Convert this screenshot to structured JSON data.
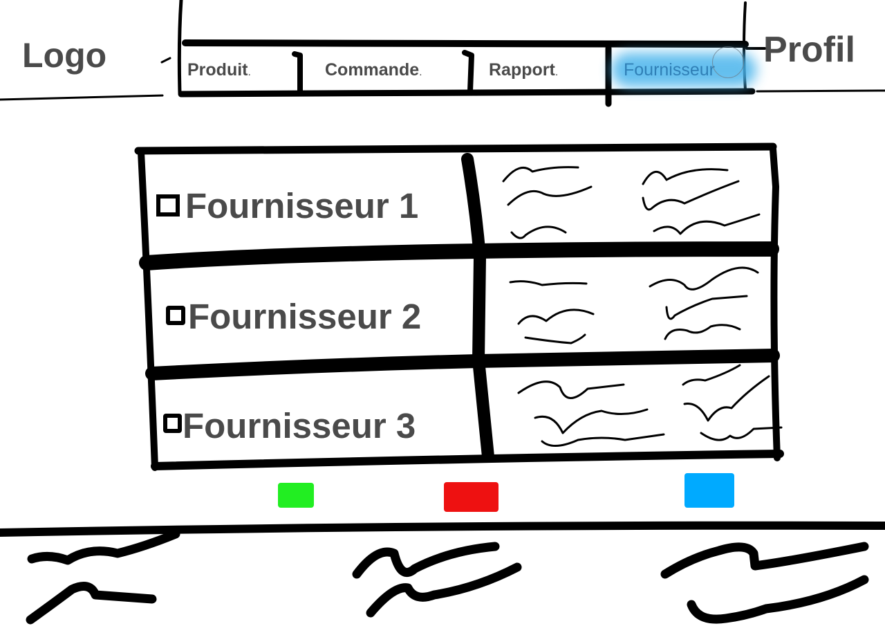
{
  "header": {
    "logo": "Logo",
    "profile": "Profil"
  },
  "nav": {
    "tabs": [
      {
        "label": "Produit",
        "selected": false
      },
      {
        "label": "Commande",
        "selected": false
      },
      {
        "label": "Rapport",
        "selected": false
      },
      {
        "label": "Fournisseur",
        "selected": true
      }
    ]
  },
  "suppliers": {
    "rows": [
      {
        "label": "Fournisseur 1",
        "checked": false
      },
      {
        "label": "Fournisseur 2",
        "checked": false
      },
      {
        "label": "Fournisseur 3",
        "checked": false
      }
    ]
  },
  "actions": {
    "buttons": [
      {
        "name": "green-action",
        "color": "#22ee22"
      },
      {
        "name": "red-action",
        "color": "#ee1111"
      },
      {
        "name": "blue-action",
        "color": "#00aaff"
      }
    ]
  },
  "colors": {
    "text": "#4a4a4a",
    "active_tab_text": "#2f7fb6",
    "active_tab_highlight": "#49b4ec",
    "stroke": "#000000"
  }
}
